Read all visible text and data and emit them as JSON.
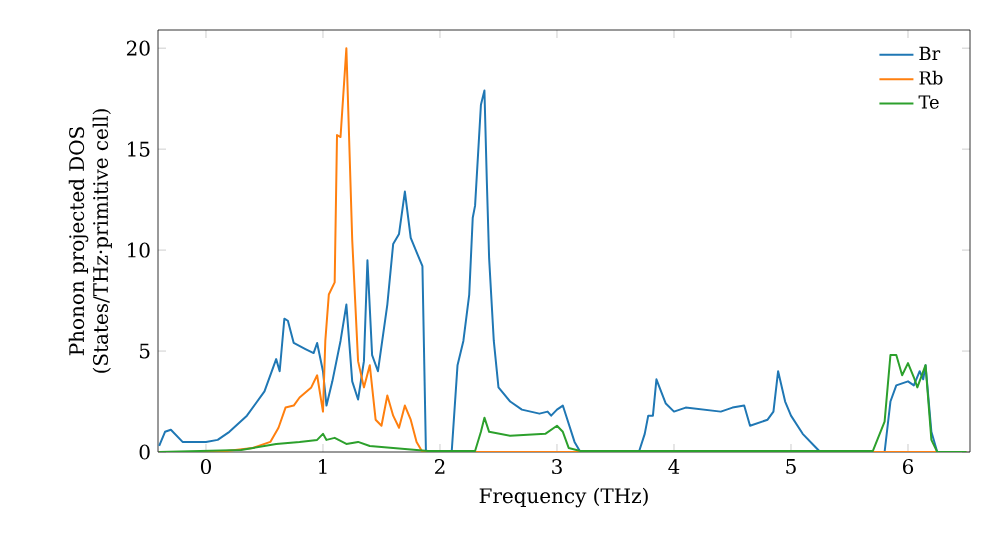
{
  "chart_data": {
    "type": "line",
    "xlabel": "Frequency (THz)",
    "ylabel": "Phonon projected DOS\n(States/THz·primitive cell)",
    "xlim": [
      -0.41,
      6.53
    ],
    "ylim": [
      0,
      20.9
    ],
    "xticks": [
      0,
      1,
      2,
      3,
      4,
      5,
      6
    ],
    "yticks": [
      0,
      5,
      10,
      15,
      20
    ],
    "legend": "top right",
    "grid": false,
    "series": [
      {
        "name": "Br",
        "color": "#1f77b4",
        "x": [
          -0.4,
          -0.35,
          -0.3,
          -0.2,
          0,
          0.1,
          0.2,
          0.35,
          0.5,
          0.6,
          0.63,
          0.67,
          0.7,
          0.75,
          0.85,
          0.92,
          0.95,
          1.0,
          1.03,
          1.08,
          1.15,
          1.2,
          1.25,
          1.3,
          1.35,
          1.38,
          1.42,
          1.47,
          1.55,
          1.6,
          1.65,
          1.7,
          1.75,
          1.85,
          1.88,
          2.1,
          2.15,
          2.2,
          2.25,
          2.28,
          2.3,
          2.35,
          2.38,
          2.4,
          2.42,
          2.46,
          2.5,
          2.6,
          2.7,
          2.85,
          2.92,
          2.95,
          3.0,
          3.05,
          3.1,
          3.15,
          3.2,
          3.7,
          3.75,
          3.78,
          3.82,
          3.85,
          3.93,
          4.0,
          4.1,
          4.4,
          4.5,
          4.6,
          4.65,
          4.8,
          4.85,
          4.89,
          4.95,
          5.0,
          5.1,
          5.2,
          5.25,
          5.8,
          5.85,
          5.9,
          6.0,
          6.05,
          6.1,
          6.13,
          6.15,
          6.2,
          6.25,
          6.5
        ],
        "values": [
          0.3,
          1.0,
          1.1,
          0.5,
          0.5,
          0.6,
          1.0,
          1.8,
          3.0,
          4.6,
          4.0,
          6.6,
          6.5,
          5.4,
          5.1,
          4.9,
          5.4,
          4.0,
          2.3,
          3.5,
          5.5,
          7.3,
          3.5,
          2.6,
          4.5,
          9.5,
          4.8,
          4.0,
          7.3,
          10.3,
          10.8,
          12.9,
          10.6,
          9.2,
          0.0,
          0.0,
          4.3,
          5.5,
          7.8,
          11.6,
          12.2,
          17.2,
          17.9,
          13.5,
          9.6,
          5.5,
          3.2,
          2.5,
          2.1,
          1.9,
          2.0,
          1.8,
          2.1,
          2.3,
          1.4,
          0.5,
          0.0,
          0.0,
          0.9,
          1.8,
          1.8,
          3.6,
          2.4,
          2.0,
          2.2,
          2.0,
          2.2,
          2.3,
          1.3,
          1.6,
          2.0,
          4.0,
          2.5,
          1.8,
          0.9,
          0.3,
          0.0,
          0.0,
          2.5,
          3.3,
          3.5,
          3.3,
          4.0,
          3.6,
          4.3,
          1.0,
          0.0,
          0.0
        ]
      },
      {
        "name": "Rb",
        "color": "#ff7f0e",
        "x": [
          -0.4,
          0.1,
          0.4,
          0.55,
          0.62,
          0.68,
          0.75,
          0.8,
          0.9,
          0.95,
          1.0,
          1.02,
          1.05,
          1.1,
          1.12,
          1.15,
          1.2,
          1.25,
          1.3,
          1.35,
          1.4,
          1.45,
          1.5,
          1.55,
          1.6,
          1.65,
          1.7,
          1.75,
          1.8,
          1.85,
          6.5
        ],
        "values": [
          0,
          0,
          0.2,
          0.5,
          1.2,
          2.2,
          2.3,
          2.7,
          3.2,
          3.8,
          2.0,
          5.5,
          7.8,
          8.4,
          15.7,
          15.6,
          20.0,
          10.5,
          4.5,
          3.2,
          4.3,
          1.6,
          1.3,
          2.8,
          1.8,
          1.2,
          2.3,
          1.6,
          0.5,
          0.0,
          0.0
        ]
      },
      {
        "name": "Te",
        "color": "#2ca02c",
        "x": [
          -0.4,
          0.3,
          0.6,
          0.8,
          0.95,
          1.0,
          1.03,
          1.1,
          1.2,
          1.3,
          1.4,
          1.6,
          1.9,
          2.3,
          2.35,
          2.38,
          2.42,
          2.6,
          2.9,
          3.0,
          3.05,
          3.1,
          3.2,
          5.7,
          5.8,
          5.85,
          5.9,
          5.95,
          6.0,
          6.05,
          6.08,
          6.15,
          6.2,
          6.25,
          6.5
        ],
        "values": [
          0,
          0.1,
          0.4,
          0.5,
          0.6,
          0.9,
          0.6,
          0.7,
          0.4,
          0.5,
          0.3,
          0.2,
          0.05,
          0.05,
          1.0,
          1.7,
          1.0,
          0.8,
          0.9,
          1.3,
          1.0,
          0.2,
          0.05,
          0.05,
          1.5,
          4.8,
          4.8,
          3.8,
          4.4,
          3.7,
          3.2,
          4.3,
          0.6,
          0.0,
          0.0
        ]
      }
    ]
  }
}
